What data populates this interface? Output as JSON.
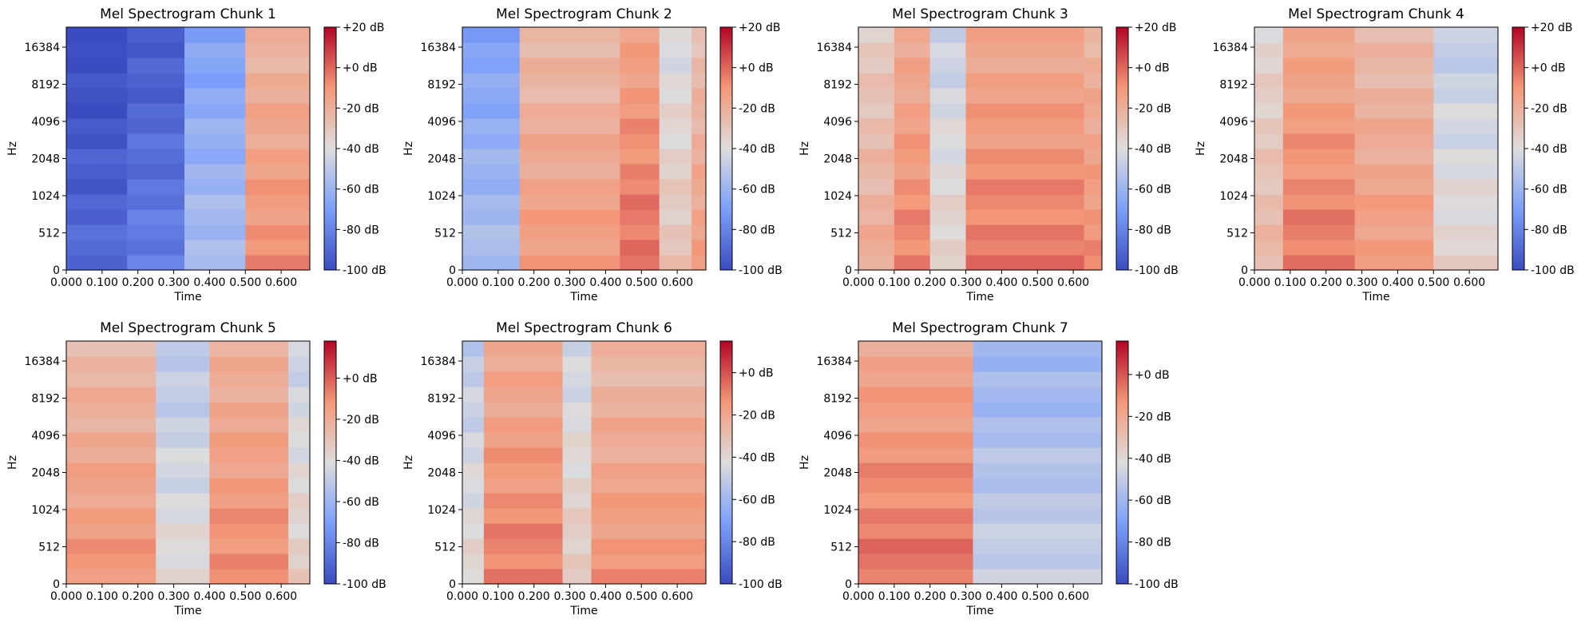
{
  "chart_data": [
    {
      "type": "heatmap",
      "title": "Mel Spectrogram Chunk 1",
      "xlabel": "Time",
      "ylabel": "Hz",
      "x_ticks": [
        "0.000",
        "0.100",
        "0.200",
        "0.300",
        "0.400",
        "0.500",
        "0.600"
      ],
      "x_tick_values": [
        0.0,
        0.1,
        0.2,
        0.3,
        0.4,
        0.5,
        0.6
      ],
      "xlim": [
        0.0,
        0.68
      ],
      "y_ticks": [
        "0",
        "512",
        "1024",
        "2048",
        "4096",
        "8192",
        "16384"
      ],
      "colorbar_ticks": [
        "+20 dB",
        "+0 dB",
        "-20 dB",
        "-40 dB",
        "-60 dB",
        "-80 dB",
        "-100 dB"
      ],
      "colorbar_values": [
        20,
        0,
        -20,
        -40,
        -60,
        -80,
        -100
      ],
      "clim": [
        -100,
        20
      ],
      "colormap": "coolwarm",
      "segments": [
        {
          "x": [
            0.0,
            0.17
          ],
          "level": -95
        },
        {
          "x": [
            0.17,
            0.33
          ],
          "level": -88
        },
        {
          "x": [
            0.33,
            0.5
          ],
          "level": -62
        },
        {
          "x": [
            0.5,
            0.68
          ],
          "level": -15
        }
      ]
    },
    {
      "type": "heatmap",
      "title": "Mel Spectrogram Chunk 2",
      "xlabel": "Time",
      "ylabel": "Hz",
      "x_ticks": [
        "0.000",
        "0.100",
        "0.200",
        "0.300",
        "0.400",
        "0.500",
        "0.600"
      ],
      "x_tick_values": [
        0.0,
        0.1,
        0.2,
        0.3,
        0.4,
        0.5,
        0.6
      ],
      "xlim": [
        0.0,
        0.68
      ],
      "y_ticks": [
        "0",
        "512",
        "1024",
        "2048",
        "4096",
        "8192",
        "16384"
      ],
      "colorbar_ticks": [
        "+20 dB",
        "+0 dB",
        "-20 dB",
        "-40 dB",
        "-60 dB",
        "-80 dB",
        "-100 dB"
      ],
      "colorbar_values": [
        20,
        0,
        -20,
        -40,
        -60,
        -80,
        -100
      ],
      "clim": [
        -100,
        20
      ],
      "colormap": "coolwarm",
      "segments": [
        {
          "x": [
            0.0,
            0.16
          ],
          "level": -62
        },
        {
          "x": [
            0.16,
            0.44
          ],
          "level": -18
        },
        {
          "x": [
            0.44,
            0.55
          ],
          "level": -8
        },
        {
          "x": [
            0.55,
            0.64
          ],
          "level": -35
        },
        {
          "x": [
            0.64,
            0.68
          ],
          "level": -20
        }
      ]
    },
    {
      "type": "heatmap",
      "title": "Mel Spectrogram Chunk 3",
      "xlabel": "Time",
      "ylabel": "Hz",
      "x_ticks": [
        "0.000",
        "0.100",
        "0.200",
        "0.300",
        "0.400",
        "0.500",
        "0.600"
      ],
      "x_tick_values": [
        0.0,
        0.1,
        0.2,
        0.3,
        0.4,
        0.5,
        0.6
      ],
      "xlim": [
        0.0,
        0.68
      ],
      "y_ticks": [
        "0",
        "512",
        "1024",
        "2048",
        "4096",
        "8192",
        "16384"
      ],
      "colorbar_ticks": [
        "+20 dB",
        "+0 dB",
        "-20 dB",
        "-40 dB",
        "-60 dB",
        "-80 dB",
        "-100 dB"
      ],
      "colorbar_values": [
        20,
        0,
        -20,
        -40,
        -60,
        -80,
        -100
      ],
      "clim": [
        -100,
        20
      ],
      "colormap": "coolwarm",
      "segments": [
        {
          "x": [
            0.0,
            0.1
          ],
          "level": -25
        },
        {
          "x": [
            0.1,
            0.2
          ],
          "level": -12
        },
        {
          "x": [
            0.2,
            0.3
          ],
          "level": -40
        },
        {
          "x": [
            0.3,
            0.63
          ],
          "level": -10
        },
        {
          "x": [
            0.63,
            0.68
          ],
          "level": -15
        }
      ]
    },
    {
      "type": "heatmap",
      "title": "Mel Spectrogram Chunk 4",
      "xlabel": "Time",
      "ylabel": "Hz",
      "x_ticks": [
        "0.000",
        "0.100",
        "0.200",
        "0.300",
        "0.400",
        "0.500",
        "0.600"
      ],
      "x_tick_values": [
        0.0,
        0.1,
        0.2,
        0.3,
        0.4,
        0.5,
        0.6
      ],
      "xlim": [
        0.0,
        0.68
      ],
      "y_ticks": [
        "0",
        "512",
        "1024",
        "2048",
        "4096",
        "8192",
        "16384"
      ],
      "colorbar_ticks": [
        "+20 dB",
        "+0 dB",
        "-20 dB",
        "-40 dB",
        "-60 dB",
        "-80 dB",
        "-100 dB"
      ],
      "colorbar_values": [
        20,
        0,
        -20,
        -40,
        -60,
        -80,
        -100
      ],
      "clim": [
        -100,
        20
      ],
      "colormap": "coolwarm",
      "segments": [
        {
          "x": [
            0.0,
            0.08
          ],
          "level": -30
        },
        {
          "x": [
            0.08,
            0.28
          ],
          "level": -10
        },
        {
          "x": [
            0.28,
            0.5
          ],
          "level": -18
        },
        {
          "x": [
            0.5,
            0.68
          ],
          "level": -42
        }
      ]
    },
    {
      "type": "heatmap",
      "title": "Mel Spectrogram Chunk 5",
      "xlabel": "Time",
      "ylabel": "Hz",
      "x_ticks": [
        "0.000",
        "0.100",
        "0.200",
        "0.300",
        "0.400",
        "0.500",
        "0.600"
      ],
      "x_tick_values": [
        0.0,
        0.1,
        0.2,
        0.3,
        0.4,
        0.5,
        0.6
      ],
      "xlim": [
        0.0,
        0.68
      ],
      "y_ticks": [
        "0",
        "512",
        "1024",
        "2048",
        "4096",
        "8192",
        "16384"
      ],
      "colorbar_ticks": [
        "+0 dB",
        "-20 dB",
        "-40 dB",
        "-60 dB",
        "-80 dB",
        "-100 dB"
      ],
      "colorbar_values": [
        0,
        -20,
        -40,
        -60,
        -80,
        -100
      ],
      "clim": [
        -100,
        18
      ],
      "colormap": "coolwarm",
      "segments": [
        {
          "x": [
            0.0,
            0.25
          ],
          "level": -18
        },
        {
          "x": [
            0.25,
            0.4
          ],
          "level": -45
        },
        {
          "x": [
            0.4,
            0.62
          ],
          "level": -15
        },
        {
          "x": [
            0.62,
            0.68
          ],
          "level": -40
        }
      ]
    },
    {
      "type": "heatmap",
      "title": "Mel Spectrogram Chunk 6",
      "xlabel": "Time",
      "ylabel": "Hz",
      "x_ticks": [
        "0.000",
        "0.100",
        "0.200",
        "0.300",
        "0.400",
        "0.500",
        "0.600"
      ],
      "x_tick_values": [
        0.0,
        0.1,
        0.2,
        0.3,
        0.4,
        0.5,
        0.6
      ],
      "xlim": [
        0.0,
        0.68
      ],
      "y_ticks": [
        "0",
        "512",
        "1024",
        "2048",
        "4096",
        "8192",
        "16384"
      ],
      "colorbar_ticks": [
        "+0 dB",
        "-20 dB",
        "-40 dB",
        "-60 dB",
        "-80 dB",
        "-100 dB"
      ],
      "colorbar_values": [
        0,
        -20,
        -40,
        -60,
        -80,
        -100
      ],
      "clim": [
        -100,
        15
      ],
      "colormap": "coolwarm",
      "segments": [
        {
          "x": [
            0.0,
            0.06
          ],
          "level": -45
        },
        {
          "x": [
            0.06,
            0.28
          ],
          "level": -15
        },
        {
          "x": [
            0.28,
            0.36
          ],
          "level": -40
        },
        {
          "x": [
            0.36,
            0.68
          ],
          "level": -20
        }
      ]
    },
    {
      "type": "heatmap",
      "title": "Mel Spectrogram Chunk 7",
      "xlabel": "Time",
      "ylabel": "Hz",
      "x_ticks": [
        "0.000",
        "0.100",
        "0.200",
        "0.300",
        "0.400",
        "0.500",
        "0.600"
      ],
      "x_tick_values": [
        0.0,
        0.1,
        0.2,
        0.3,
        0.4,
        0.5,
        0.6
      ],
      "xlim": [
        0.0,
        0.68
      ],
      "y_ticks": [
        "0",
        "512",
        "1024",
        "2048",
        "4096",
        "8192",
        "16384"
      ],
      "colorbar_ticks": [
        "+0 dB",
        "-20 dB",
        "-40 dB",
        "-60 dB",
        "-80 dB",
        "-100 dB"
      ],
      "colorbar_values": [
        0,
        -20,
        -40,
        -60,
        -80,
        -100
      ],
      "clim": [
        -100,
        16
      ],
      "colormap": "coolwarm",
      "segments": [
        {
          "x": [
            0.0,
            0.32
          ],
          "level": -12
        },
        {
          "x": [
            0.32,
            0.68
          ],
          "level": -55
        }
      ]
    }
  ]
}
